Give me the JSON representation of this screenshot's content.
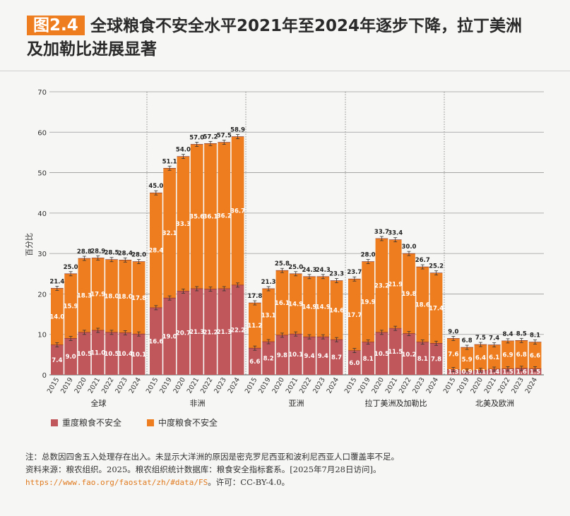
{
  "header": {
    "figure_label": "图2.4",
    "title_line1": "全球粮食不安全水平2021年至2024年逐步下降，拉丁美洲",
    "title_line2": "及加勒比进展显著"
  },
  "legend": {
    "severe": "重度粮食不安全",
    "moderate": "中度粮食不安全"
  },
  "notes": {
    "note": "注：总数因四舍五入处理存在出入。未显示大洋洲的原因是密克罗尼西亚和波利尼西亚人口覆盖率不足。",
    "source_prefix": "资料来源：粮农组织。2025。粮农组织统计数据库：粮食安全指标套系。[2025年7月28日访问]。",
    "source_link": "https://www.fao.org/faostat/zh/#data/FS",
    "license": "。许可：CC-BY-4.0。"
  },
  "colors": {
    "severe": "#c0575a",
    "moderate": "#ee7d1f",
    "grid": "#9a9a9a",
    "text": "#333333"
  },
  "chart_data": {
    "type": "bar",
    "stacked": true,
    "ylabel": "百分比",
    "ylim": [
      0,
      70
    ],
    "yticks": [
      0,
      10,
      20,
      30,
      40,
      50,
      60,
      70
    ],
    "years": [
      "2015",
      "2019",
      "2020",
      "2021",
      "2022",
      "2023",
      "2024"
    ],
    "groups": [
      {
        "name": "全球",
        "severe": [
          7.4,
          9.0,
          10.5,
          11.0,
          10.5,
          10.4,
          10.1
        ],
        "moderate": [
          14.0,
          15.9,
          18.3,
          17.9,
          18.0,
          18.0,
          17.8
        ],
        "total": [
          21.4,
          25.0,
          28.8,
          28.9,
          28.5,
          28.4,
          28.0
        ]
      },
      {
        "name": "非洲",
        "severe": [
          16.6,
          19.0,
          20.7,
          21.3,
          21.2,
          21.3,
          22.2
        ],
        "moderate": [
          28.4,
          32.1,
          33.3,
          35.6,
          36.1,
          36.2,
          36.7
        ],
        "total": [
          45.0,
          51.1,
          54.0,
          57.0,
          57.2,
          57.5,
          58.9
        ]
      },
      {
        "name": "亚洲",
        "severe": [
          6.6,
          8.2,
          9.8,
          10.1,
          9.4,
          9.4,
          8.7
        ],
        "moderate": [
          11.2,
          13.1,
          16.1,
          14.9,
          14.9,
          14.9,
          14.6
        ],
        "total": [
          17.8,
          21.3,
          25.8,
          25.0,
          24.3,
          24.3,
          23.3
        ]
      },
      {
        "name": "拉丁美洲及加勒比",
        "severe": [
          6.0,
          8.1,
          10.5,
          11.5,
          10.2,
          8.1,
          7.8
        ],
        "moderate": [
          17.7,
          19.9,
          23.2,
          21.9,
          19.8,
          18.6,
          17.4
        ],
        "total": [
          23.7,
          28.0,
          33.7,
          33.4,
          30.0,
          26.7,
          25.2
        ]
      },
      {
        "name": "北美及欧洲",
        "severe": [
          1.3,
          0.9,
          1.1,
          1.4,
          1.5,
          1.6,
          1.5
        ],
        "moderate": [
          7.6,
          5.9,
          6.4,
          6.1,
          6.9,
          6.8,
          6.6
        ],
        "total": [
          9.0,
          6.8,
          7.5,
          7.4,
          8.4,
          8.5,
          8.1
        ]
      }
    ]
  }
}
